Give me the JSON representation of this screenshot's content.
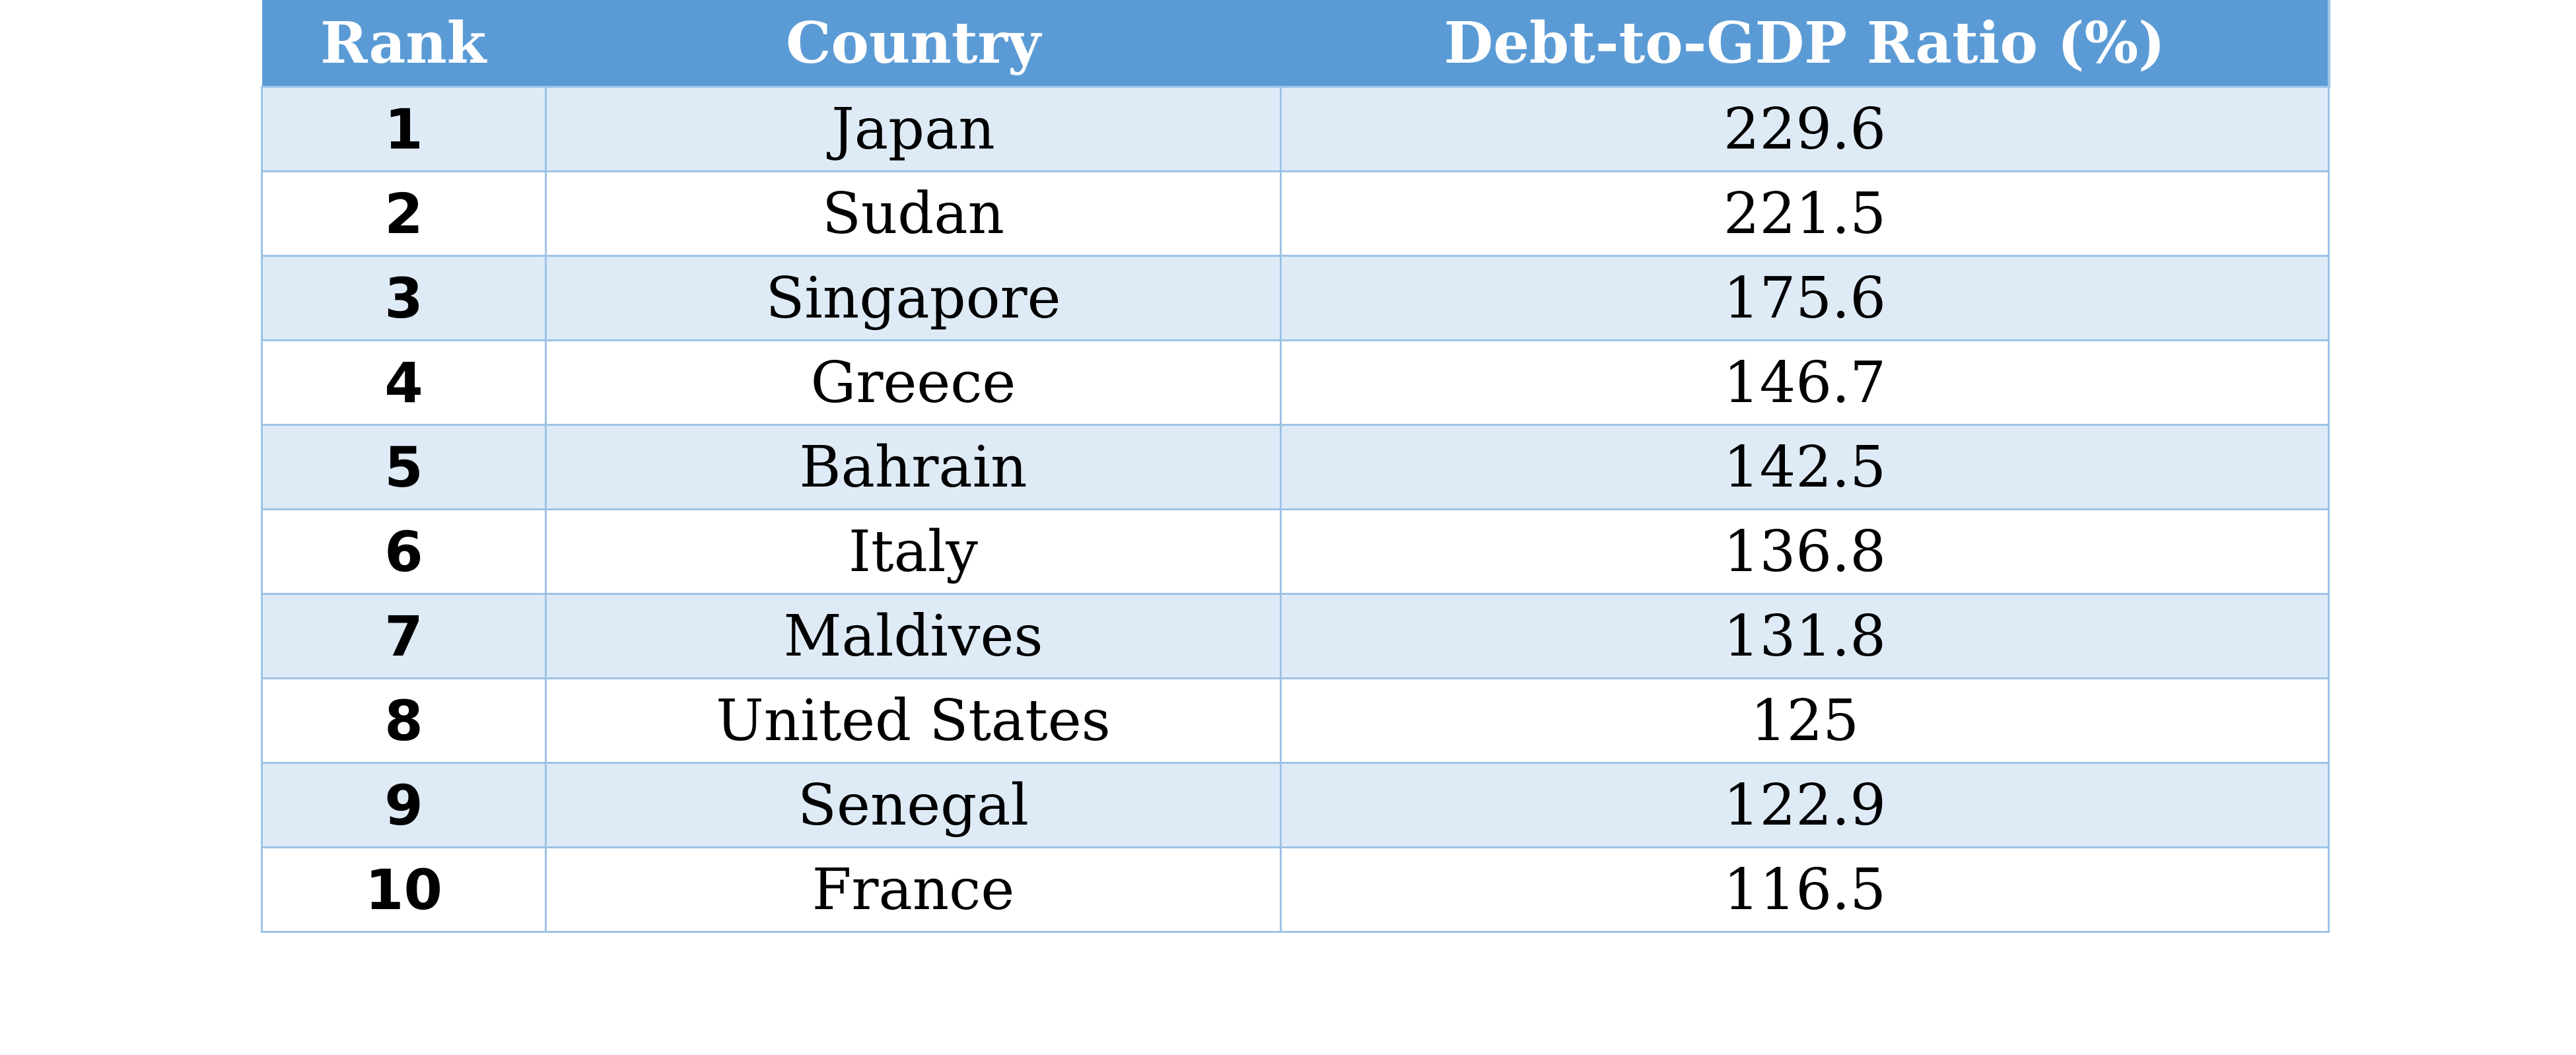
{
  "table": {
    "headers": {
      "rank": "Rank",
      "country": "Country",
      "ratio": "Debt-to-GDP Ratio (%)"
    },
    "rows": [
      {
        "rank": "1",
        "country": "Japan",
        "ratio": "229.6"
      },
      {
        "rank": "2",
        "country": "Sudan",
        "ratio": "221.5"
      },
      {
        "rank": "3",
        "country": "Singapore",
        "ratio": "175.6"
      },
      {
        "rank": "4",
        "country": "Greece",
        "ratio": "146.7"
      },
      {
        "rank": "5",
        "country": "Bahrain",
        "ratio": "142.5"
      },
      {
        "rank": "6",
        "country": "Italy",
        "ratio": "136.8"
      },
      {
        "rank": "7",
        "country": "Maldives",
        "ratio": "131.8"
      },
      {
        "rank": "8",
        "country": "United States",
        "ratio": "125"
      },
      {
        "rank": "9",
        "country": "Senegal",
        "ratio": "122.9"
      },
      {
        "rank": "10",
        "country": "France",
        "ratio": "116.5"
      }
    ]
  },
  "colors": {
    "header_bg": "#5b9bd5",
    "header_text": "#ffffff",
    "band_row_bg": "#deebf7",
    "plain_row_bg": "#ffffff",
    "grid_line": "#9dc3e6"
  }
}
